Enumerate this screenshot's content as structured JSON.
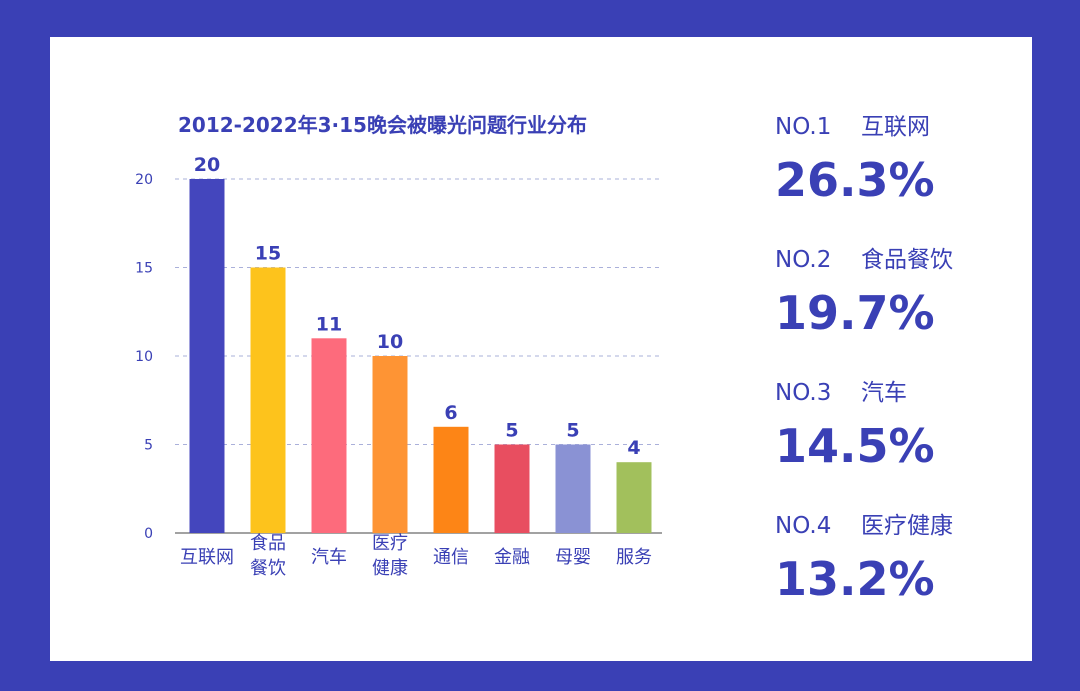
{
  "chart_data": {
    "type": "bar",
    "title": "2012-2022年3·15晚会被曝光问题行业分布",
    "categories": [
      "互联网",
      "食品餐饮",
      "汽车",
      "医疗健康",
      "通信",
      "金融",
      "母婴",
      "服务"
    ],
    "category_lines": [
      [
        "互联网"
      ],
      [
        "食品",
        "餐饮"
      ],
      [
        "汽车"
      ],
      [
        "医疗",
        "健康"
      ],
      [
        "通信"
      ],
      [
        "金融"
      ],
      [
        "母婴"
      ],
      [
        "服务"
      ]
    ],
    "values": [
      20,
      15,
      11,
      10,
      6,
      5,
      5,
      4
    ],
    "colors": [
      "#4446bd",
      "#fdc31c",
      "#fd6b7c",
      "#fe9434",
      "#fd8516",
      "#e84e60",
      "#8a92d4",
      "#a2c05c"
    ],
    "yticks": [
      0,
      5,
      10,
      15,
      20
    ],
    "ylim": [
      0,
      20
    ],
    "grid": true,
    "xlabel": "",
    "ylabel": ""
  },
  "rankings": [
    {
      "no": "NO.1",
      "name": "互联网",
      "pct": "26.3%"
    },
    {
      "no": "NO.2",
      "name": "食品餐饮",
      "pct": "19.7%"
    },
    {
      "no": "NO.3",
      "name": "汽车",
      "pct": "14.5%"
    },
    {
      "no": "NO.4",
      "name": "医疗健康",
      "pct": "13.2%"
    }
  ],
  "colors": {
    "frame": "#3a40b5",
    "text": "#3a40b5",
    "grid": "#aab0da",
    "axis": "#444444"
  }
}
